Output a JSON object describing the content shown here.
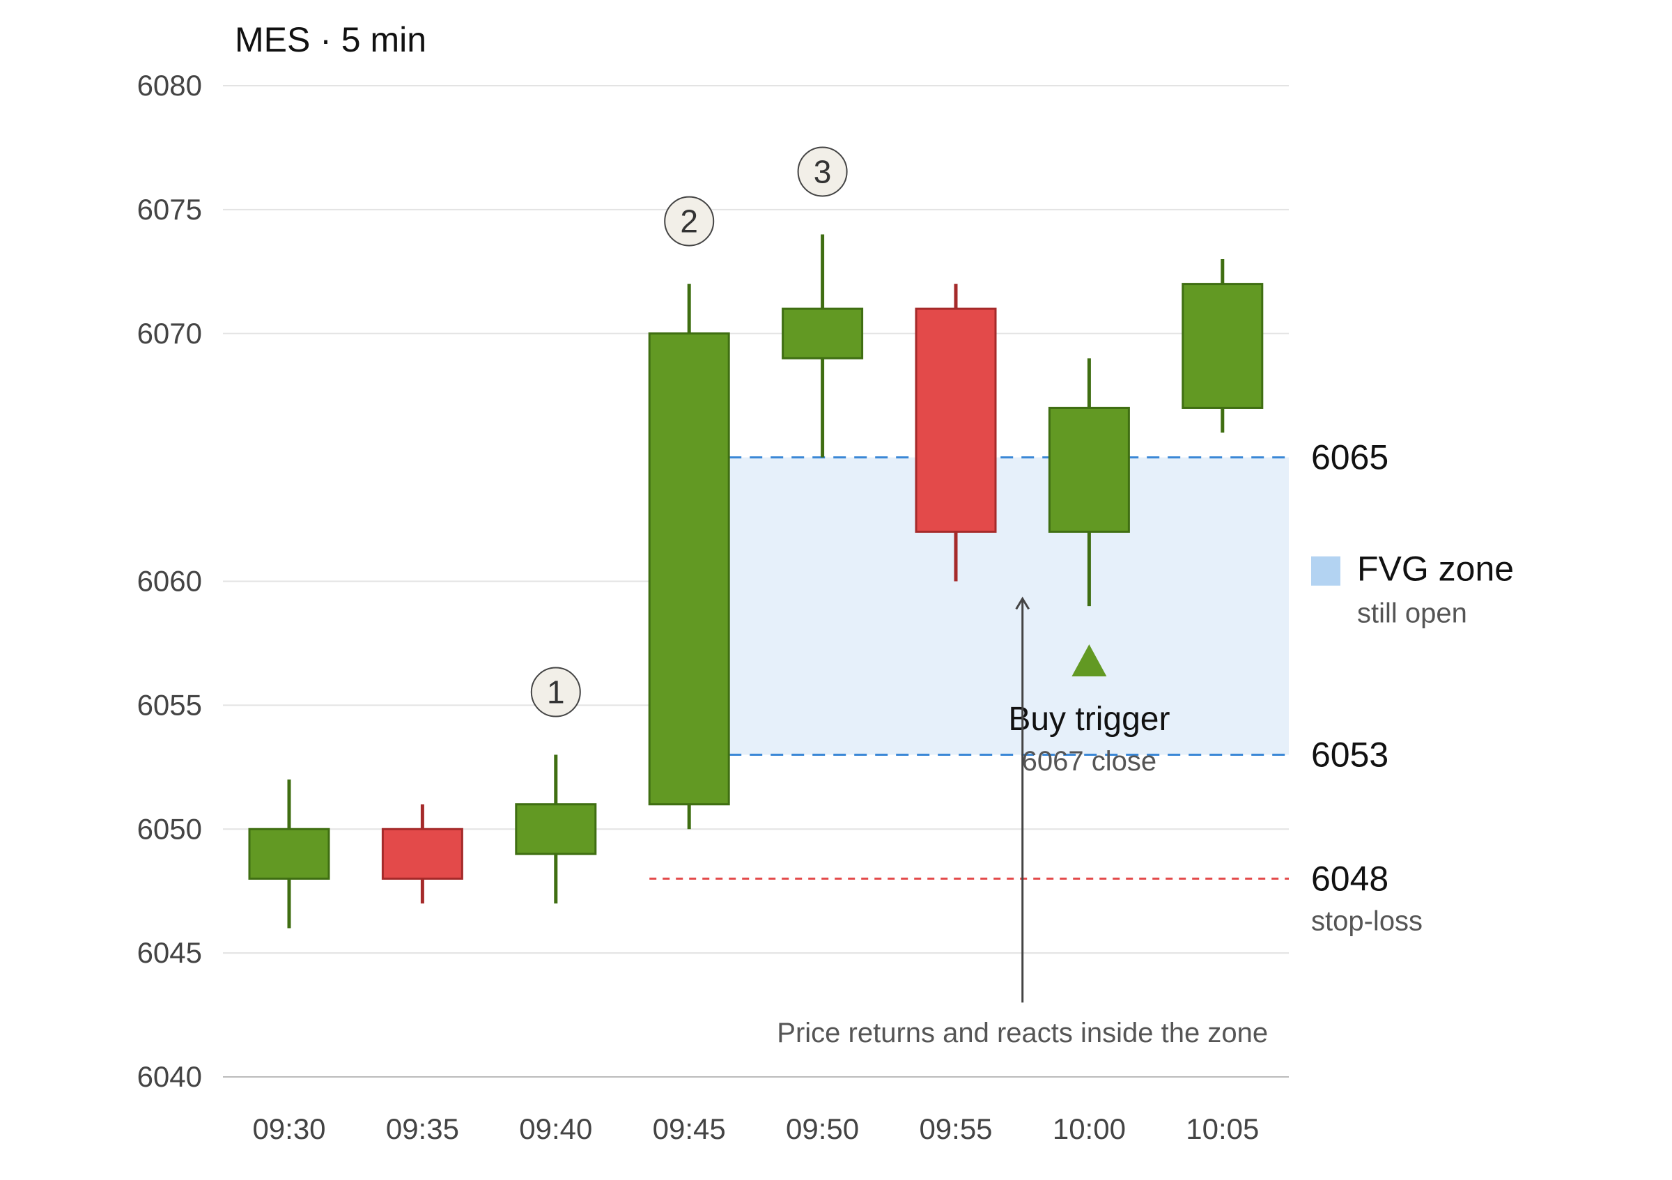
{
  "chart_data": {
    "type": "candlestick",
    "title": "MES · 5 min",
    "categories": [
      "09:30",
      "09:35",
      "09:40",
      "09:45",
      "09:50",
      "09:55",
      "10:00",
      "10:05"
    ],
    "candles": [
      {
        "time": "09:30",
        "open": 6048,
        "high": 6052,
        "low": 6046,
        "close": 6050
      },
      {
        "time": "09:35",
        "open": 6050,
        "high": 6051,
        "low": 6047,
        "close": 6048
      },
      {
        "time": "09:40",
        "open": 6049,
        "high": 6053,
        "low": 6047,
        "close": 6051
      },
      {
        "time": "09:45",
        "open": 6051,
        "high": 6072,
        "low": 6050,
        "close": 6070
      },
      {
        "time": "09:50",
        "open": 6069,
        "high": 6074,
        "low": 6065,
        "close": 6071
      },
      {
        "time": "09:55",
        "open": 6071,
        "high": 6072,
        "low": 6060,
        "close": 6062
      },
      {
        "time": "10:00",
        "open": 6062,
        "high": 6069,
        "low": 6059,
        "close": 6067
      },
      {
        "time": "10:05",
        "open": 6067,
        "high": 6073,
        "low": 6066,
        "close": 6072
      }
    ],
    "ylim": [
      6040,
      6080
    ],
    "yticks": [
      6040,
      6045,
      6050,
      6055,
      6060,
      6070,
      6075,
      6080
    ],
    "grid": true,
    "colors": {
      "up": "#629923",
      "up_edge": "#3f6e12",
      "down": "#e34a4a",
      "down_edge": "#a52a2a",
      "zone_fill": "#e6f0fa",
      "zone_line": "#3a87d6",
      "stop_line": "#e34a4a",
      "marker_fill": "#f2efe8",
      "marker_edge": "#444444"
    },
    "markers": [
      {
        "label": "1",
        "time": "09:40"
      },
      {
        "label": "2",
        "time": "09:45"
      },
      {
        "label": "3",
        "time": "09:50"
      }
    ],
    "fvg_zone": {
      "upper": 6065,
      "lower": 6053,
      "upper_label": "6065",
      "lower_label": "6053",
      "start": "09:45",
      "legend_label": "FVG zone",
      "legend_sub": "still open"
    },
    "stop_loss": {
      "value": 6048,
      "label": "6048",
      "sub": "stop-loss",
      "start": "09:45"
    },
    "buy_trigger": {
      "time": "10:00",
      "price": 6057.4,
      "label": "Buy trigger",
      "sub": "6067 close"
    },
    "annotation": {
      "text": "Price returns and reacts inside the zone",
      "arrow_time": "09:57.5",
      "arrow_from": 6043,
      "arrow_to": 6059.3
    }
  }
}
